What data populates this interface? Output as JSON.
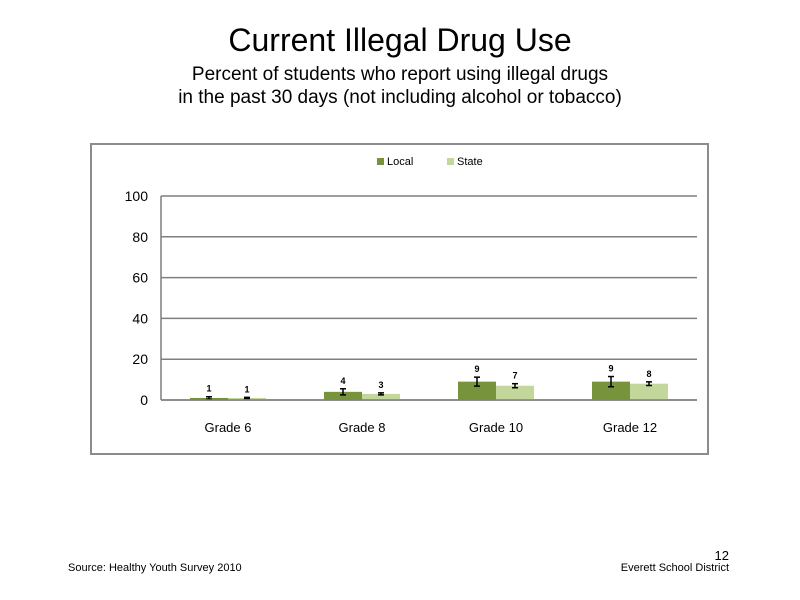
{
  "title": "Current Illegal Drug Use",
  "subtitle": "Percent of students who report using illegal drugs\nin the past 30 days (not including  alcohol or tobacco)",
  "footer": {
    "source": "Source: Healthy Youth Survey 2010",
    "organization": "Everett School District",
    "page_number": "12"
  },
  "colors": {
    "local": "#77933c",
    "state": "#c3d69b",
    "grid": "#7f7f7f"
  },
  "chart_data": {
    "type": "bar",
    "categories": [
      "Grade 6",
      "Grade 8",
      "Grade 10",
      "Grade 12"
    ],
    "series": [
      {
        "name": "Local",
        "values": [
          1,
          4,
          9,
          9
        ],
        "labels": [
          "1",
          "4",
          "9",
          "9"
        ],
        "error": [
          0.6,
          1.5,
          2.2,
          2.5
        ]
      },
      {
        "name": "State",
        "values": [
          1,
          3,
          7,
          8
        ],
        "labels": [
          "1",
          "3",
          "7",
          "8"
        ],
        "error": [
          0.3,
          0.5,
          1.0,
          0.9
        ]
      }
    ],
    "yticks": [
      "0",
      "20",
      "40",
      "60",
      "80",
      "100"
    ],
    "ylim": [
      0,
      100
    ],
    "grid": true,
    "legend_position": "top-center"
  }
}
